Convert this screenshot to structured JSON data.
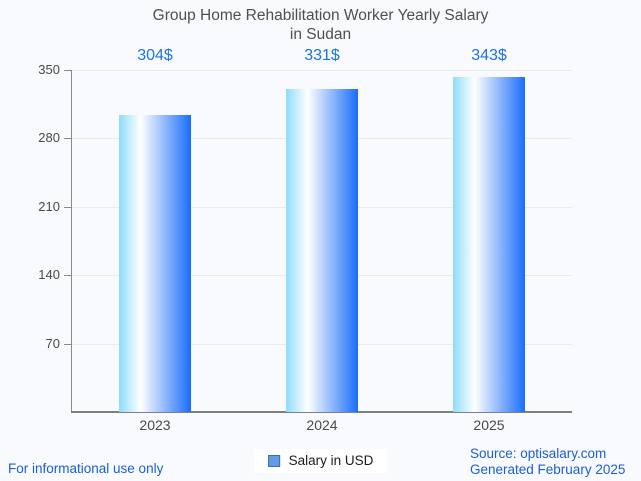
{
  "title": {
    "line1": "Group Home Rehabilitation Worker Yearly Salary",
    "line2": "in Sudan"
  },
  "chart_data": {
    "type": "bar",
    "title": "Group Home Rehabilitation Worker Yearly Salary in Sudan",
    "categories": [
      "2023",
      "2024",
      "2025"
    ],
    "values": [
      304,
      331,
      343
    ],
    "value_labels": [
      "304$",
      "331$",
      "343$"
    ],
    "series": [
      {
        "name": "Salary in USD",
        "values": [
          304,
          331,
          343
        ]
      }
    ],
    "xlabel": "",
    "ylabel": "",
    "ylim": [
      0,
      350
    ],
    "yticks": [
      70,
      140,
      210,
      280,
      350
    ],
    "grid": true,
    "legend_position": "bottom-center",
    "bar_gradient": [
      "#8edcfa",
      "#ffffff",
      "#1a6dfb"
    ]
  },
  "legend": {
    "label": "Salary in USD"
  },
  "footer": {
    "left": "For informational use only",
    "source": "Source: optisalary.com",
    "generated": "Generated February 2025"
  },
  "colors": {
    "background": "#f9fafd",
    "title_text": "#4f4f4f",
    "value_label": "#1a73e8",
    "axis_label": "#4a4a4a",
    "gridline": "#e8eaed",
    "axis_line": "#8a8a8a",
    "footer_link": "#1a5fd4",
    "legend_marker": "#5f9de4",
    "bar_left": "#8edcfa",
    "bar_right": "#1a6dfb"
  }
}
